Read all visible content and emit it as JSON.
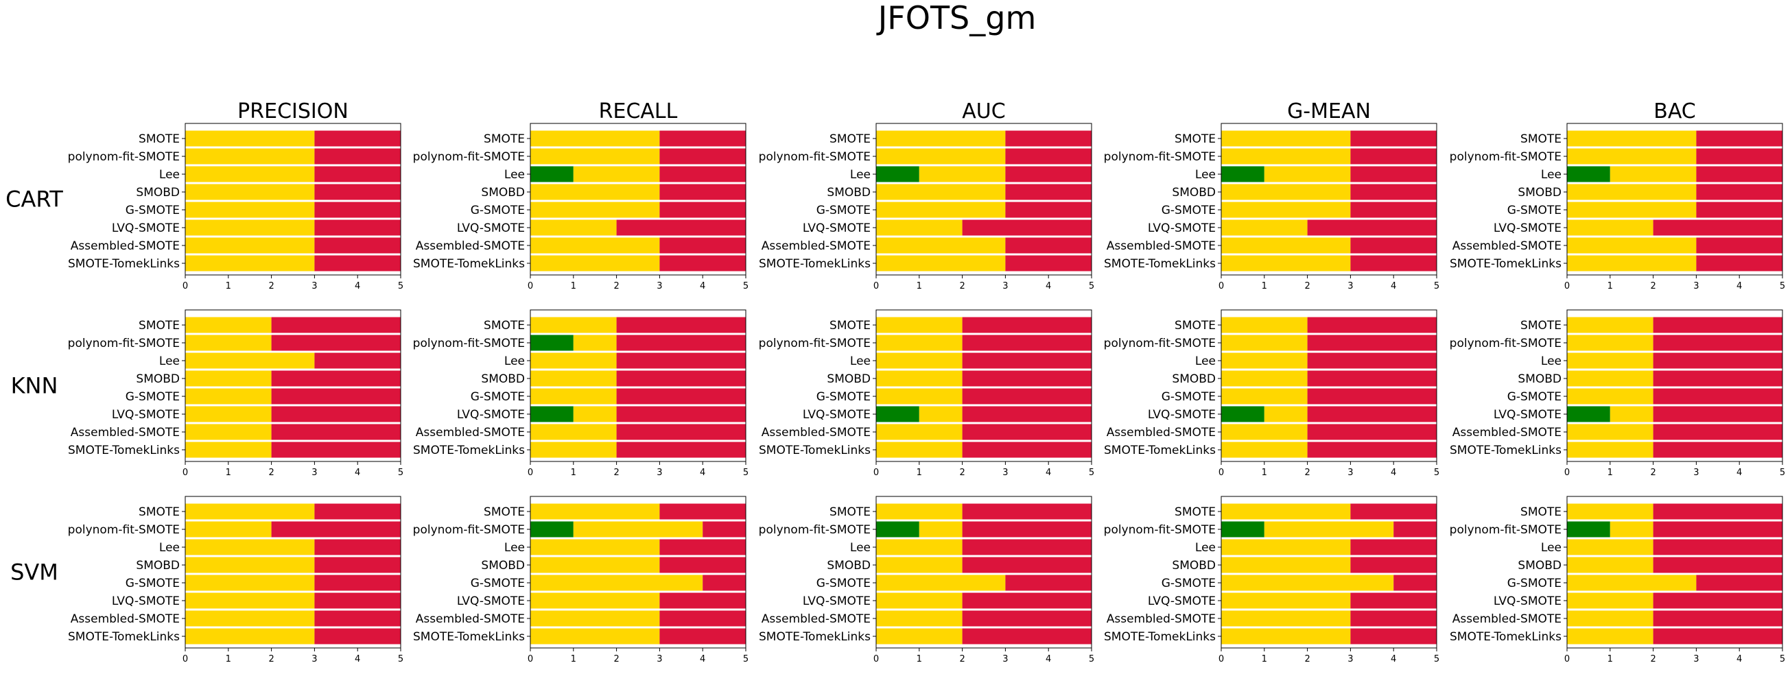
{
  "chart_data": {
    "type": "bar",
    "orientation": "horizontal-stacked",
    "title": "JFOTS_gm",
    "metrics": [
      "PRECISION",
      "RECALL",
      "AUC",
      "G-MEAN",
      "BAC"
    ],
    "classifiers": [
      "CART",
      "KNN",
      "SVM"
    ],
    "categories": [
      "SMOTE",
      "polynom-fit-SMOTE",
      "Lee",
      "SMOBD",
      "G-SMOTE",
      "LVQ-SMOTE",
      "Assembled-SMOTE",
      "SMOTE-TomekLinks"
    ],
    "xlim": [
      0,
      5
    ],
    "xticks": [
      "0",
      "1",
      "2",
      "3",
      "4",
      "5"
    ],
    "segment_order": [
      "green",
      "gold",
      "red"
    ],
    "colors": {
      "green": "#008000",
      "gold": "#ffd700",
      "red": "#dc143c",
      "separator": "#ffffff",
      "axis": "#000000",
      "text": "#000000"
    },
    "grid": false,
    "panels": [
      [
        {
          "metric": "PRECISION",
          "classifier": "CART",
          "green": [
            0,
            0,
            0,
            0,
            0,
            0,
            0,
            0
          ],
          "gold": [
            3,
            3,
            3,
            3,
            3,
            3,
            3,
            3
          ]
        },
        {
          "metric": "RECALL",
          "classifier": "CART",
          "green": [
            0,
            0,
            1,
            0,
            0,
            0,
            0,
            0
          ],
          "gold": [
            3,
            3,
            2,
            3,
            3,
            2,
            3,
            3
          ]
        },
        {
          "metric": "AUC",
          "classifier": "CART",
          "green": [
            0,
            0,
            1,
            0,
            0,
            0,
            0,
            0
          ],
          "gold": [
            3,
            3,
            2,
            3,
            3,
            2,
            3,
            3
          ]
        },
        {
          "metric": "G-MEAN",
          "classifier": "CART",
          "green": [
            0,
            0,
            1,
            0,
            0,
            0,
            0,
            0
          ],
          "gold": [
            3,
            3,
            2,
            3,
            3,
            2,
            3,
            3
          ]
        },
        {
          "metric": "BAC",
          "classifier": "CART",
          "green": [
            0,
            0,
            1,
            0,
            0,
            0,
            0,
            0
          ],
          "gold": [
            3,
            3,
            2,
            3,
            3,
            2,
            3,
            3
          ]
        }
      ],
      [
        {
          "metric": "PRECISION",
          "classifier": "KNN",
          "green": [
            0,
            0,
            0,
            0,
            0,
            0,
            0,
            0
          ],
          "gold": [
            2,
            2,
            3,
            2,
            2,
            2,
            2,
            2
          ]
        },
        {
          "metric": "RECALL",
          "classifier": "KNN",
          "green": [
            0,
            1,
            0,
            0,
            0,
            1,
            0,
            0
          ],
          "gold": [
            2,
            1,
            2,
            2,
            2,
            1,
            2,
            2
          ]
        },
        {
          "metric": "AUC",
          "classifier": "KNN",
          "green": [
            0,
            0,
            0,
            0,
            0,
            1,
            0,
            0
          ],
          "gold": [
            2,
            2,
            2,
            2,
            2,
            1,
            2,
            2
          ]
        },
        {
          "metric": "G-MEAN",
          "classifier": "KNN",
          "green": [
            0,
            0,
            0,
            0,
            0,
            1,
            0,
            0
          ],
          "gold": [
            2,
            2,
            2,
            2,
            2,
            1,
            2,
            2
          ]
        },
        {
          "metric": "BAC",
          "classifier": "KNN",
          "green": [
            0,
            0,
            0,
            0,
            0,
            1,
            0,
            0
          ],
          "gold": [
            2,
            2,
            2,
            2,
            2,
            1,
            2,
            2
          ]
        }
      ],
      [
        {
          "metric": "PRECISION",
          "classifier": "SVM",
          "green": [
            0,
            0,
            0,
            0,
            0,
            0,
            0,
            0
          ],
          "gold": [
            3,
            2,
            3,
            3,
            3,
            3,
            3,
            3
          ]
        },
        {
          "metric": "RECALL",
          "classifier": "SVM",
          "green": [
            0,
            1,
            0,
            0,
            0,
            0,
            0,
            0
          ],
          "gold": [
            3,
            3,
            3,
            3,
            4,
            3,
            3,
            3
          ]
        },
        {
          "metric": "AUC",
          "classifier": "SVM",
          "green": [
            0,
            1,
            0,
            0,
            0,
            0,
            0,
            0
          ],
          "gold": [
            2,
            1,
            2,
            2,
            3,
            2,
            2,
            2
          ]
        },
        {
          "metric": "G-MEAN",
          "classifier": "SVM",
          "green": [
            0,
            1,
            0,
            0,
            0,
            0,
            0,
            0
          ],
          "gold": [
            3,
            3,
            3,
            3,
            4,
            3,
            3,
            3
          ]
        },
        {
          "metric": "BAC",
          "classifier": "SVM",
          "green": [
            0,
            1,
            0,
            0,
            0,
            0,
            0,
            0
          ],
          "gold": [
            2,
            1,
            2,
            2,
            3,
            2,
            2,
            2
          ]
        }
      ]
    ]
  }
}
